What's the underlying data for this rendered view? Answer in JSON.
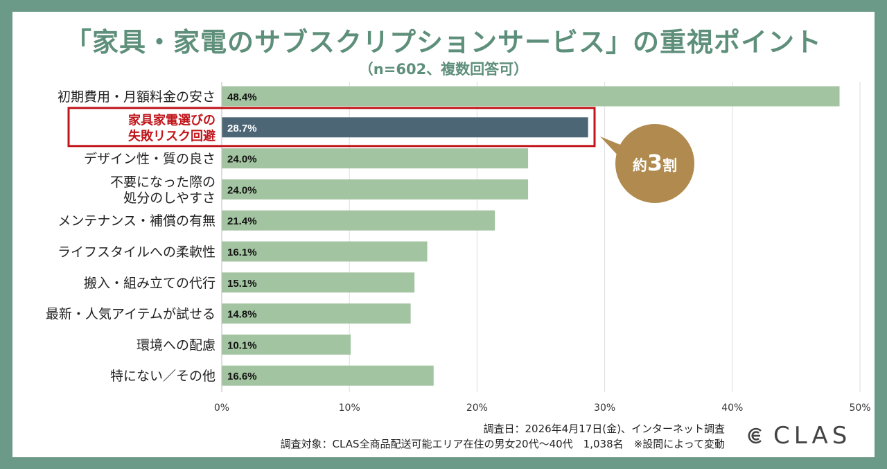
{
  "title": "「家具・家電のサブスクリプションサービス」の重視ポイント",
  "subtitle": "（n=602、複数回答可）",
  "colors": {
    "background": "#6b9a88",
    "bar": "#a3c4a1",
    "highlight_bar": "#4d6676",
    "highlight_border": "#c0161b",
    "badge": "#b08a4e",
    "title": "#5e8f7a"
  },
  "chart_data": {
    "type": "bar",
    "orientation": "horizontal",
    "categories": [
      [
        "初期費用・月額料金の安さ"
      ],
      [
        "家具家電選びの",
        "失敗リスク回避"
      ],
      [
        "デザイン性・質の良さ"
      ],
      [
        "不要になった際の",
        "処分のしやすさ"
      ],
      [
        "メンテナンス・補償の有無"
      ],
      [
        "ライフスタイルへの柔軟性"
      ],
      [
        "搬入・組み立ての代行"
      ],
      [
        "最新・人気アイテムが試せる"
      ],
      [
        "環境への配慮"
      ],
      [
        "特にない／その他"
      ]
    ],
    "values": [
      48.4,
      28.7,
      24.0,
      24.0,
      21.4,
      16.1,
      15.1,
      14.8,
      10.1,
      16.6
    ],
    "value_labels": [
      "48.4%",
      "28.7%",
      "24.0%",
      "24.0%",
      "21.4%",
      "16.1%",
      "15.1%",
      "14.8%",
      "10.1%",
      "16.6%"
    ],
    "highlight_index": 1,
    "xlim": [
      0,
      50
    ],
    "xticks": [
      0,
      10,
      20,
      30,
      40,
      50
    ],
    "xtick_labels": [
      "0%",
      "10%",
      "20%",
      "30%",
      "40%",
      "50%"
    ],
    "grid": true,
    "annotation": {
      "prefix": "約",
      "number": "3",
      "suffix": "割"
    }
  },
  "footnotes": [
    "調査日：2026年4月17日(金)、インターネット調査",
    "調査対象：CLAS全商品配送可能エリア在住の男女20代〜40代　1,038名　※設問によって変動"
  ],
  "brand": {
    "name": "CLAS",
    "icon": "clas-logo-icon"
  }
}
